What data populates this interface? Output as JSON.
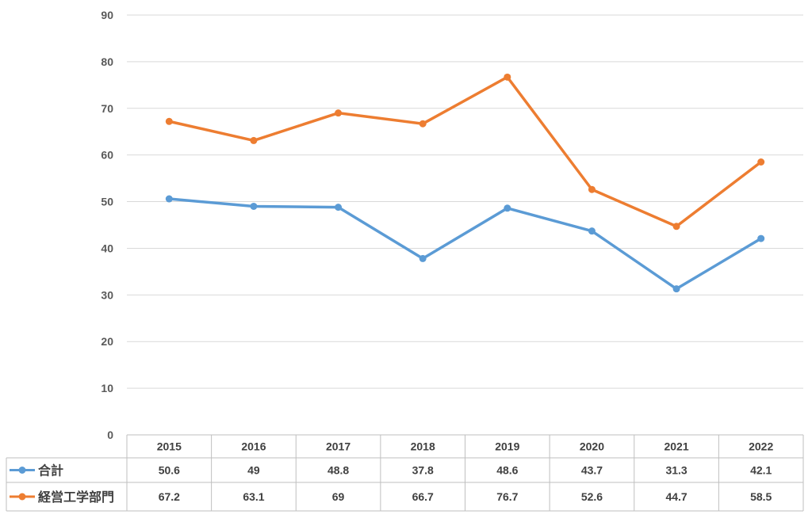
{
  "chart_data": {
    "type": "line",
    "title": "",
    "xlabel": "",
    "ylabel": "",
    "categories": [
      "2015",
      "2016",
      "2017",
      "2018",
      "2019",
      "2020",
      "2021",
      "2022"
    ],
    "series": [
      {
        "name": "合計",
        "color": "#5B9BD5",
        "values": [
          50.6,
          49,
          48.8,
          37.8,
          48.6,
          43.7,
          31.3,
          42.1
        ],
        "labels": [
          "50.6",
          "49",
          "48.8",
          "37.8",
          "48.6",
          "43.7",
          "31.3",
          "42.1"
        ]
      },
      {
        "name": "経営工学部門",
        "color": "#ED7D31",
        "values": [
          67.2,
          63.1,
          69,
          66.7,
          76.7,
          52.6,
          44.7,
          58.5
        ],
        "labels": [
          "67.2",
          "63.1",
          "69",
          "66.7",
          "76.7",
          "52.6",
          "44.7",
          "58.5"
        ]
      }
    ],
    "ylim": [
      0,
      90
    ],
    "yticks": [
      "0",
      "10",
      "20",
      "30",
      "40",
      "50",
      "60",
      "70",
      "80",
      "90"
    ],
    "grid": true,
    "legend": "data-table-left",
    "data_table": true
  }
}
